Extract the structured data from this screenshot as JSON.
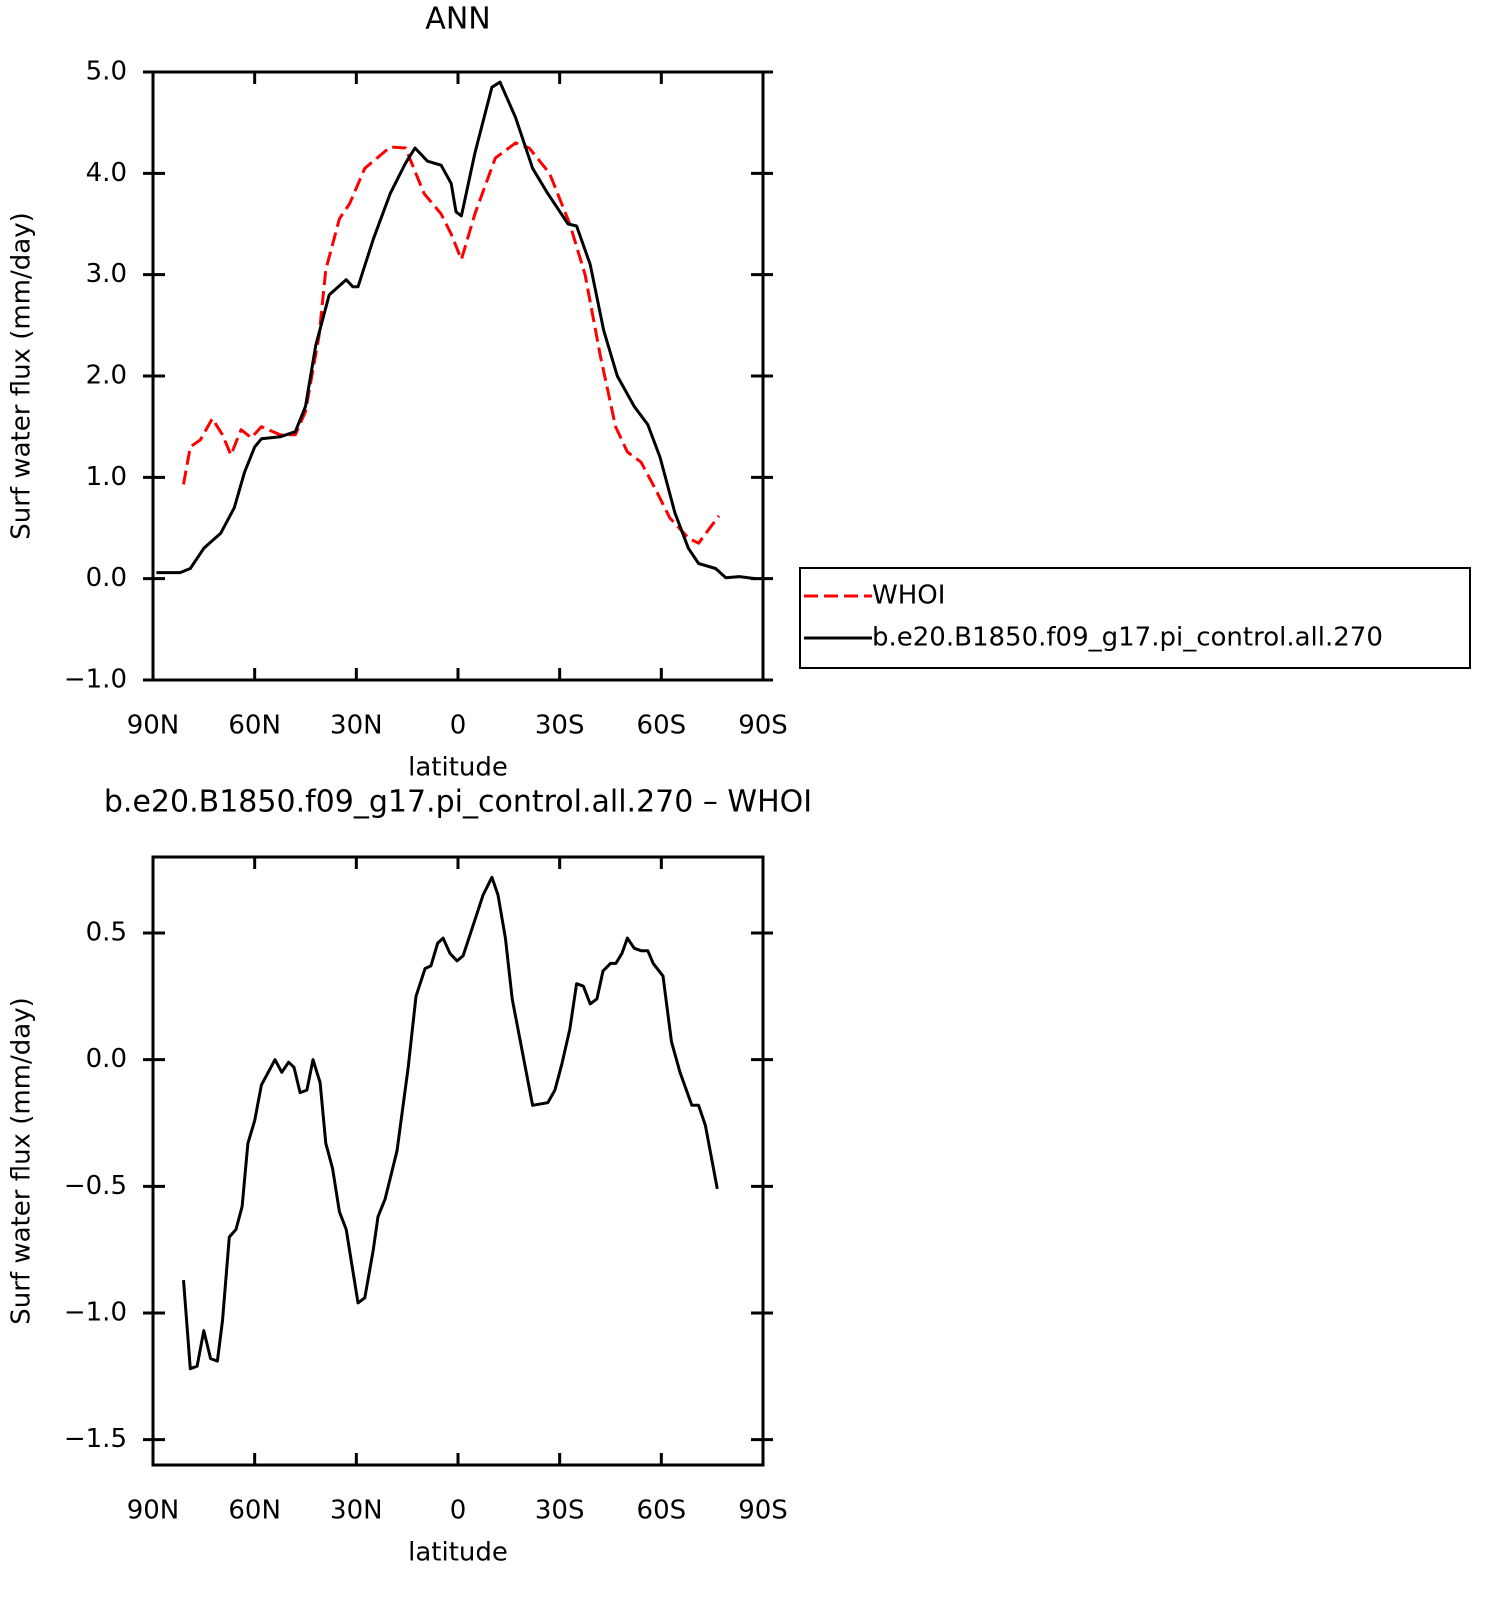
{
  "chart_data": [
    {
      "type": "line",
      "title": "ANN",
      "xlabel": "latitude",
      "ylabel": "Surf water flux (mm/day)",
      "xlim": [
        90,
        -90
      ],
      "xticks": [
        {
          "value": 90,
          "label": "90N"
        },
        {
          "value": 60,
          "label": "60N"
        },
        {
          "value": 30,
          "label": "30N"
        },
        0,
        {
          "value": -30,
          "label": "30S"
        },
        {
          "value": -60,
          "label": "60S"
        },
        {
          "value": -90,
          "label": "90S"
        }
      ],
      "ylim": [
        -1,
        5
      ],
      "yticks": [
        {
          "value": -1,
          "label": "−1.0"
        },
        {
          "value": 0,
          "label": "0.0"
        },
        {
          "value": 1,
          "label": "1.0"
        },
        {
          "value": 2,
          "label": "2.0"
        },
        {
          "value": 3,
          "label": "3.0"
        },
        {
          "value": 4,
          "label": "4.0"
        },
        {
          "value": 5,
          "label": "5.0"
        }
      ],
      "legend": "right",
      "series": [
        {
          "name": "WHOI",
          "color": "#ff0000",
          "style": "dashed",
          "x": [
            81,
            79,
            76,
            72.5,
            69.5,
            67,
            64,
            61,
            58,
            52.5,
            48,
            45,
            41,
            39,
            35,
            32,
            27.5,
            20,
            15.5,
            10,
            5,
            2,
            -1,
            -5,
            -11,
            -17,
            -21,
            -27,
            -33,
            -37.5,
            -42,
            -46.5,
            -50,
            -54,
            -58,
            -62.5,
            -68,
            -71,
            -77
          ],
          "values": [
            0.93,
            1.3,
            1.37,
            1.58,
            1.42,
            1.22,
            1.47,
            1.39,
            1.5,
            1.42,
            1.42,
            1.65,
            2.4,
            3.05,
            3.55,
            3.7,
            4.05,
            4.26,
            4.25,
            3.8,
            3.6,
            3.4,
            3.15,
            3.6,
            4.15,
            4.3,
            4.25,
            4.0,
            3.5,
            3.0,
            2.2,
            1.5,
            1.25,
            1.15,
            0.9,
            0.6,
            0.4,
            0.35,
            0.62
          ]
        },
        {
          "name": "b.e20.B1850.f09_g17.pi_control.all.270",
          "color": "#000000",
          "style": "solid",
          "x": [
            89,
            82,
            79,
            75,
            70,
            66,
            63,
            60,
            58,
            52.5,
            48,
            45,
            42,
            38,
            33,
            31,
            29.5,
            25,
            20,
            15.5,
            12.7,
            9,
            5,
            2,
            0.6,
            -1,
            -5,
            -10,
            -12.4,
            -17,
            -22,
            -26.5,
            -32.5,
            -35,
            -39,
            -43,
            -47,
            -52,
            -56,
            -59.6,
            -64,
            -68,
            -71,
            -76,
            -79,
            -83,
            -88
          ],
          "values": [
            0.06,
            0.06,
            0.1,
            0.3,
            0.45,
            0.7,
            1.05,
            1.3,
            1.38,
            1.4,
            1.45,
            1.7,
            2.3,
            2.8,
            2.95,
            2.88,
            2.88,
            3.35,
            3.8,
            4.1,
            4.25,
            4.12,
            4.08,
            3.9,
            3.62,
            3.58,
            4.2,
            4.85,
            4.9,
            4.55,
            4.05,
            3.8,
            3.5,
            3.48,
            3.1,
            2.45,
            2.0,
            1.7,
            1.52,
            1.2,
            0.65,
            0.3,
            0.15,
            0.1,
            0.01,
            0.02,
            0.0
          ]
        }
      ]
    },
    {
      "type": "line",
      "title": "b.e20.B1850.f09_g17.pi_control.all.270 – WHOI",
      "xlabel": "latitude",
      "ylabel": "Surf water flux (mm/day)",
      "xlim": [
        90,
        -90
      ],
      "xticks": [
        {
          "value": 90,
          "label": "90N"
        },
        {
          "value": 60,
          "label": "60N"
        },
        {
          "value": 30,
          "label": "30N"
        },
        0,
        {
          "value": -30,
          "label": "30S"
        },
        {
          "value": -60,
          "label": "60S"
        },
        {
          "value": -90,
          "label": "90S"
        }
      ],
      "ylim": [
        -1.6,
        0.8
      ],
      "yticks": [
        {
          "value": -1.5,
          "label": "−1.5"
        },
        {
          "value": -1,
          "label": "−1.0"
        },
        {
          "value": -0.5,
          "label": "−0.5"
        },
        {
          "value": 0,
          "label": "0.0"
        },
        0.5
      ],
      "series": [
        {
          "color": "#000000",
          "style": "solid",
          "x": [
            81,
            79,
            77,
            75,
            73,
            71,
            69.5,
            67.5,
            65.5,
            63.7,
            62,
            60,
            58,
            54,
            52,
            50,
            48.4,
            46.6,
            44.6,
            42.8,
            40.7,
            39,
            37,
            35,
            33,
            29.5,
            27.5,
            25,
            23.6,
            21.5,
            18,
            14.7,
            12.4,
            9.7,
            8,
            6,
            4.4,
            2.4,
            0.3,
            -1.5,
            -7.4,
            -10,
            -11.8,
            -14,
            -16,
            -22,
            -26.5,
            -28.6,
            -30.6,
            -33,
            -35,
            -37,
            -39,
            -41,
            -42.8,
            -45,
            -46.6,
            -48.4,
            -50,
            -52,
            -54,
            -56,
            -57.6,
            -60.5,
            -63,
            -65.5,
            -69,
            -71,
            -73,
            -76.5
          ],
          "values": [
            -0.87,
            -1.22,
            -1.21,
            -1.07,
            -1.18,
            -1.19,
            -1.03,
            -0.7,
            -0.67,
            -0.58,
            -0.33,
            -0.24,
            -0.1,
            0.0,
            -0.05,
            -0.01,
            -0.03,
            -0.13,
            -0.12,
            0.0,
            -0.09,
            -0.33,
            -0.43,
            -0.6,
            -0.67,
            -0.96,
            -0.94,
            -0.75,
            -0.62,
            -0.55,
            -0.36,
            -0.03,
            0.25,
            0.36,
            0.37,
            0.46,
            0.48,
            0.42,
            0.39,
            0.41,
            0.65,
            0.72,
            0.65,
            0.48,
            0.24,
            -0.18,
            -0.17,
            -0.12,
            -0.02,
            0.12,
            0.3,
            0.29,
            0.22,
            0.24,
            0.35,
            0.38,
            0.38,
            0.42,
            0.48,
            0.44,
            0.43,
            0.43,
            0.38,
            0.33,
            0.07,
            -0.05,
            -0.18,
            -0.18,
            -0.26,
            -0.51
          ]
        }
      ]
    }
  ]
}
